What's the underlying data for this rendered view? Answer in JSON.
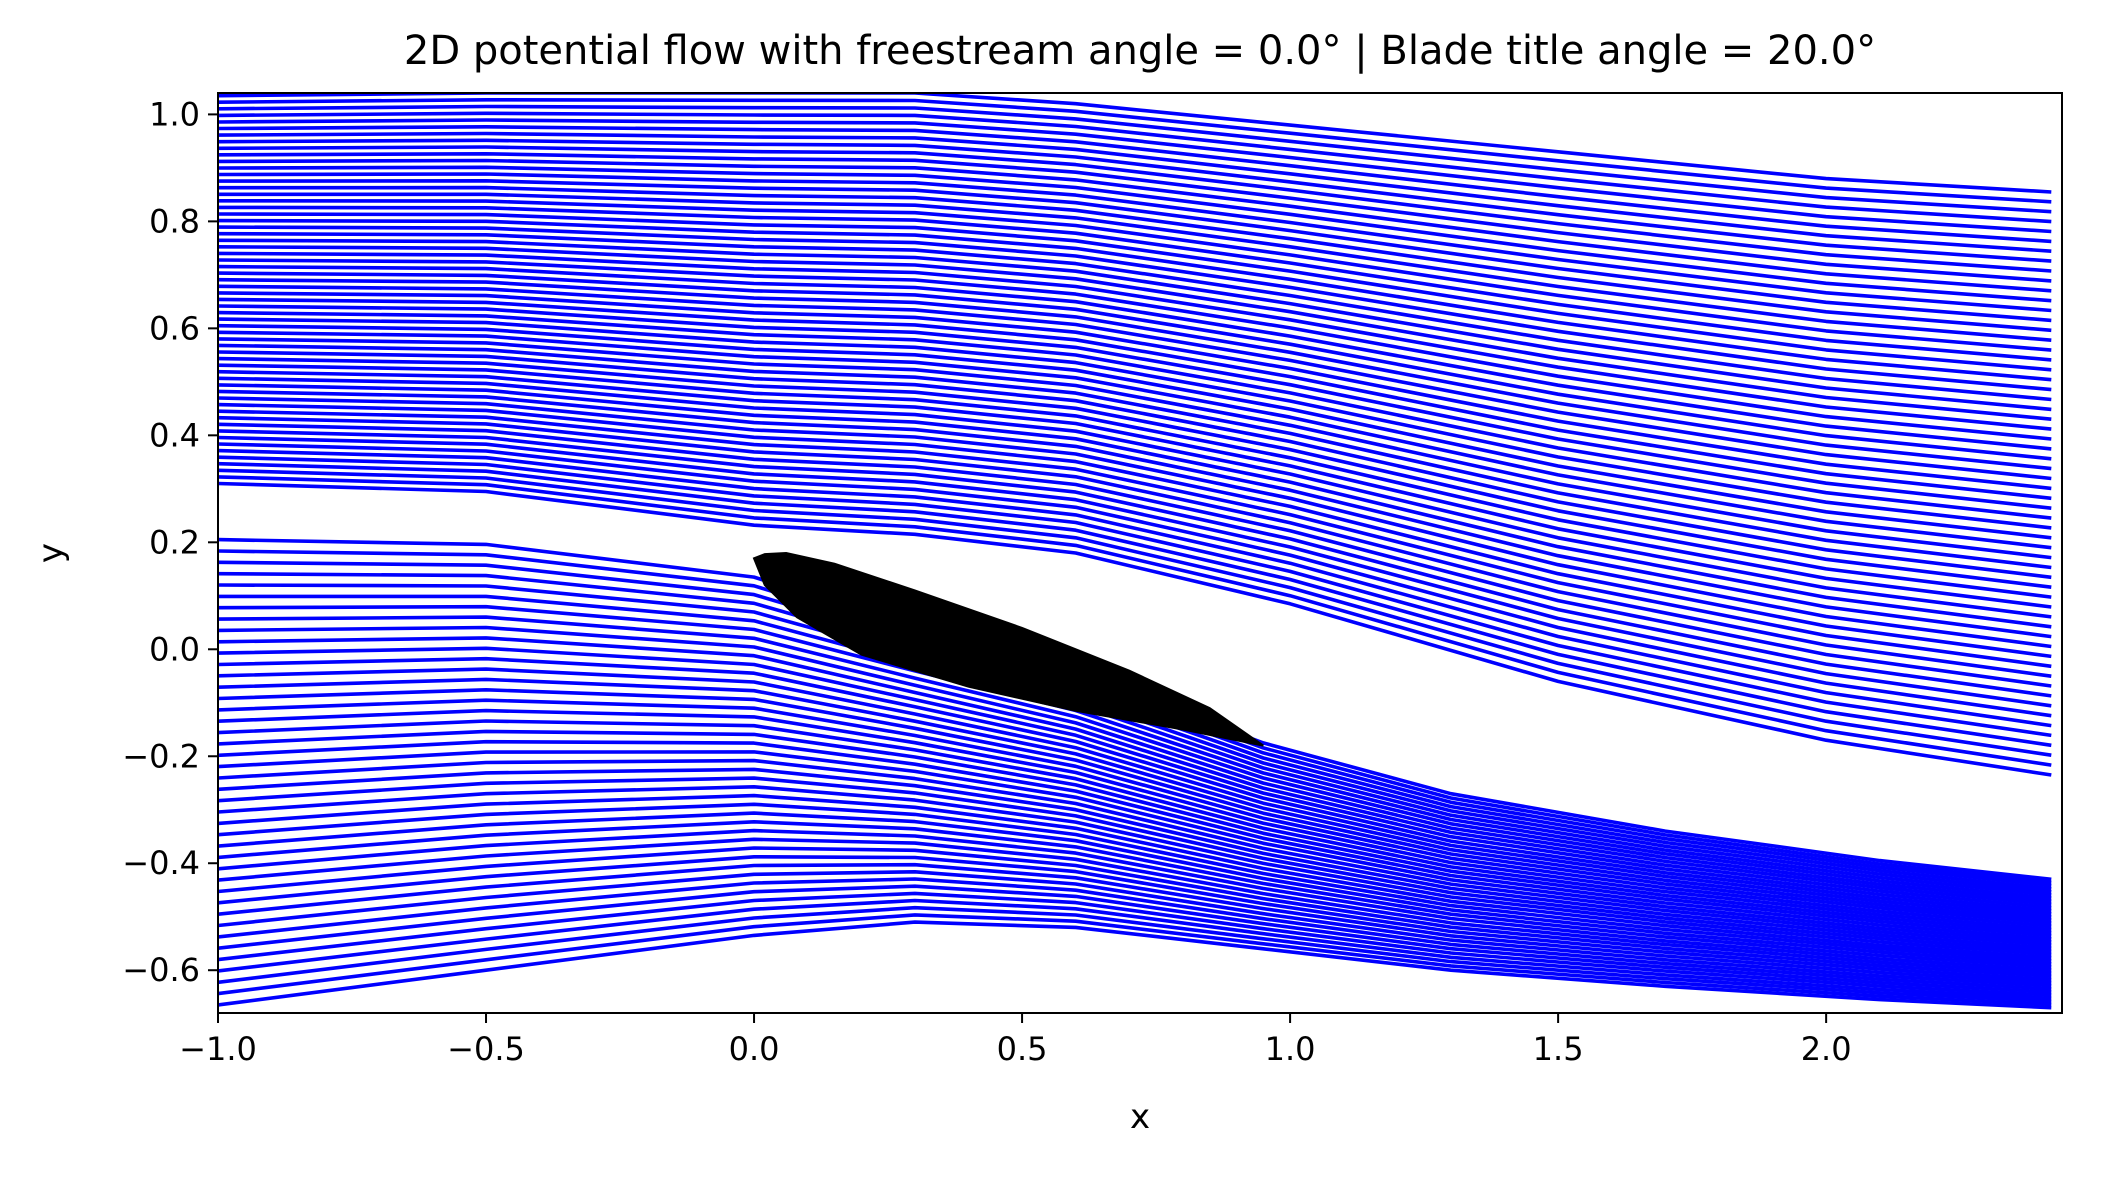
{
  "chart_data": {
    "type": "line",
    "title": "2D potential flow with freestream angle = 0.0° | Blade title angle = 20.0°",
    "xlabel": "x",
    "ylabel": "y",
    "xlim": [
      -1.0,
      2.44
    ],
    "ylim": [
      -0.68,
      1.04
    ],
    "x_ticks": [
      -1.0,
      -0.5,
      0.0,
      0.5,
      1.0,
      1.5,
      2.0
    ],
    "x_tick_labels": [
      "−1.0",
      "−0.5",
      "0.0",
      "0.5",
      "1.0",
      "1.5",
      "2.0"
    ],
    "y_ticks": [
      -0.6,
      -0.4,
      -0.2,
      0.0,
      0.2,
      0.4,
      0.6,
      0.8,
      1.0
    ],
    "y_tick_labels": [
      "−0.6",
      "−0.4",
      "−0.2",
      "0.0",
      "0.2",
      "0.4",
      "0.6",
      "0.8",
      "1.0"
    ],
    "grid": false,
    "legend": "none",
    "streamline_color": "#0000ff",
    "blade_color": "#000000",
    "streamline_groups": {
      "upper": {
        "count": 60,
        "x": [
          -1.0,
          -0.5,
          0.0,
          0.3,
          0.6,
          1.0,
          1.5,
          2.0,
          2.42
        ],
        "first_y": [
          0.31,
          0.295,
          0.232,
          0.215,
          0.18,
          0.085,
          -0.06,
          -0.17,
          -0.235
        ],
        "last_y": [
          1.035,
          1.04,
          1.04,
          1.04,
          1.02,
          0.98,
          0.93,
          0.88,
          0.855
        ]
      },
      "lower": {
        "count": 42,
        "x": [
          -1.0,
          -0.5,
          0.0,
          0.3,
          0.6,
          0.95,
          1.3,
          1.7,
          2.1,
          2.42
        ],
        "first_y": [
          0.205,
          0.196,
          0.135,
          0.04,
          -0.045,
          -0.175,
          -0.27,
          -0.34,
          -0.395,
          -0.43
        ],
        "last_y": [
          -0.665,
          -0.6,
          -0.535,
          -0.51,
          -0.52,
          -0.56,
          -0.6,
          -0.63,
          -0.655,
          -0.67
        ]
      }
    },
    "blade": {
      "leading_edge": [
        0.0,
        0.17
      ],
      "trailing_edge": [
        0.95,
        -0.18
      ],
      "upper_surface": [
        [
          0.0,
          0.17
        ],
        [
          0.02,
          0.178
        ],
        [
          0.06,
          0.18
        ],
        [
          0.15,
          0.16
        ],
        [
          0.3,
          0.11
        ],
        [
          0.5,
          0.04
        ],
        [
          0.7,
          -0.04
        ],
        [
          0.85,
          -0.11
        ],
        [
          0.95,
          -0.18
        ]
      ],
      "lower_surface": [
        [
          0.95,
          -0.18
        ],
        [
          0.8,
          -0.15
        ],
        [
          0.6,
          -0.115
        ],
        [
          0.4,
          -0.07
        ],
        [
          0.2,
          -0.01
        ],
        [
          0.08,
          0.06
        ],
        [
          0.02,
          0.12
        ],
        [
          0.0,
          0.17
        ]
      ]
    }
  }
}
